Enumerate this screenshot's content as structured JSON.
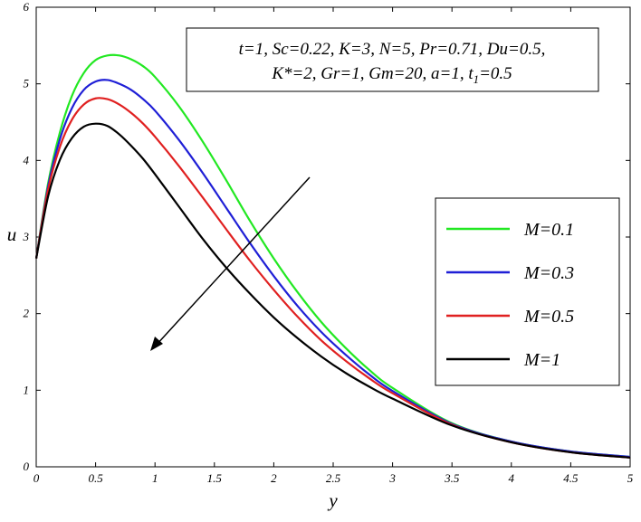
{
  "chart_data": {
    "type": "line",
    "xlabel": "y",
    "ylabel": "u",
    "xlim": [
      0,
      5
    ],
    "ylim": [
      0,
      6
    ],
    "x_ticks": [
      "0",
      "0.5",
      "1",
      "1.5",
      "2",
      "2.5",
      "3",
      "3.5",
      "4",
      "4.5",
      "5"
    ],
    "y_ticks": [
      "0",
      "1",
      "2",
      "3",
      "4",
      "5",
      "6"
    ],
    "grid": false,
    "legend_position": "right",
    "parameters": {
      "line1": "t=1, Sc=0.22, K=3, N=5, Pr=0.71, Du=0.5,",
      "line2_main": "K*=2, Gr=1, Gm=20, a=1, t",
      "line2_sub": "1",
      "line2_tail": "=0.5"
    },
    "annotation": "arrow indicating increasing M",
    "x": [
      0,
      0.1,
      0.2,
      0.3,
      0.4,
      0.5,
      0.6,
      0.7,
      0.8,
      0.9,
      1.0,
      1.2,
      1.4,
      1.6,
      1.8,
      2.0,
      2.2,
      2.4,
      2.6,
      2.8,
      3.0,
      3.5,
      4.0,
      4.5,
      5.0
    ],
    "series": [
      {
        "name": "M=0.1",
        "color": "#22e822",
        "values": [
          2.72,
          3.7,
          4.37,
          4.84,
          5.14,
          5.31,
          5.37,
          5.37,
          5.32,
          5.23,
          5.09,
          4.71,
          4.25,
          3.74,
          3.21,
          2.72,
          2.28,
          1.89,
          1.56,
          1.27,
          1.03,
          0.57,
          0.33,
          0.2,
          0.13
        ]
      },
      {
        "name": "M=0.3",
        "color": "#1f1fd6",
        "values": [
          2.72,
          3.66,
          4.28,
          4.68,
          4.92,
          5.03,
          5.05,
          5.0,
          4.92,
          4.8,
          4.65,
          4.27,
          3.84,
          3.38,
          2.92,
          2.49,
          2.1,
          1.76,
          1.47,
          1.21,
          0.99,
          0.56,
          0.33,
          0.2,
          0.13
        ]
      },
      {
        "name": "M=0.5",
        "color": "#e02020",
        "values": [
          2.72,
          3.62,
          4.18,
          4.53,
          4.73,
          4.81,
          4.8,
          4.73,
          4.62,
          4.48,
          4.31,
          3.93,
          3.52,
          3.1,
          2.69,
          2.31,
          1.96,
          1.65,
          1.39,
          1.16,
          0.96,
          0.55,
          0.32,
          0.19,
          0.12
        ]
      },
      {
        "name": "M=1",
        "color": "#000000",
        "values": [
          2.72,
          3.53,
          4.01,
          4.29,
          4.44,
          4.48,
          4.45,
          4.34,
          4.19,
          4.02,
          3.82,
          3.4,
          2.98,
          2.6,
          2.26,
          1.95,
          1.68,
          1.44,
          1.23,
          1.05,
          0.89,
          0.54,
          0.32,
          0.19,
          0.12
        ]
      }
    ]
  }
}
